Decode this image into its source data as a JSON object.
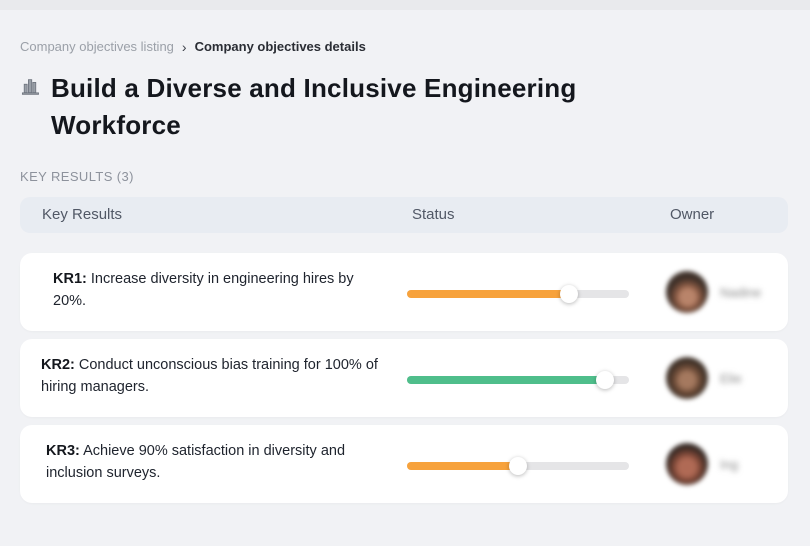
{
  "breadcrumb": {
    "parent": "Company objectives listing",
    "separator": "›",
    "current": "Company objectives details"
  },
  "header": {
    "title_line1": "Build a Diverse and Inclusive Engineering",
    "title_line2": "Workforce",
    "icon": "building-bars-icon",
    "section_label": "KEY RESULTS (3)"
  },
  "table": {
    "headers": [
      "Key Results",
      "Status",
      "Owner"
    ]
  },
  "rows": [
    {
      "kr_label": "KR1:",
      "text": "Increase diversity in engineering hires by 20%.",
      "progress_percent": 73,
      "progress_color": "#f7a23c",
      "owner": "Nadine"
    },
    {
      "kr_label": "KR2:",
      "text": "Conduct unconscious bias training for 100% of hiring managers.",
      "progress_percent": 89,
      "progress_color": "#4fbe8b",
      "owner": "Elie"
    },
    {
      "kr_label": "KR3:",
      "text": "Achieve 90% satisfaction in diversity and inclusion surveys.",
      "progress_percent": 50,
      "progress_color": "#f7a23c",
      "owner": "Ing"
    }
  ],
  "colors": {
    "background": "#f1f2f5",
    "card": "#ffffff",
    "header_strip": "#e8ecf2",
    "track": "#e5e5e7",
    "orange": "#f7a23c",
    "green": "#4fbe8b"
  }
}
